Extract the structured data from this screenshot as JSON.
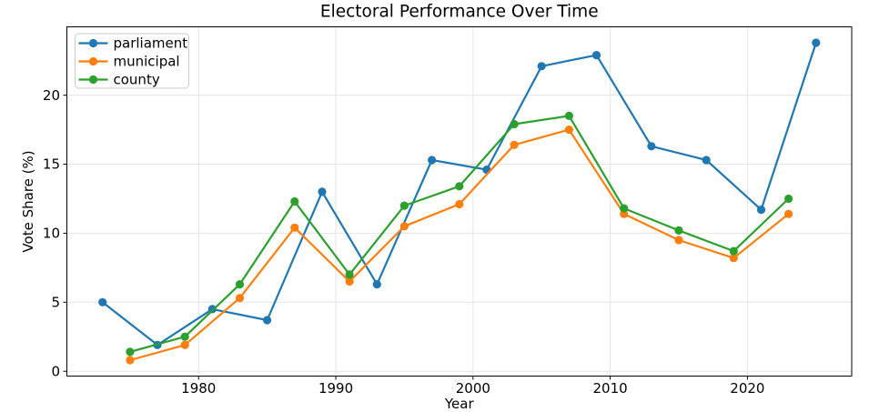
{
  "chart": {
    "title": "Electoral Performance Over Time",
    "xlabel": "Year",
    "ylabel": "Vote Share (%)"
  },
  "chart_data": {
    "type": "line",
    "title": "Electoral Performance Over Time",
    "xlabel": "Year",
    "ylabel": "Vote Share (%)",
    "x_ticks": [
      1980,
      1990,
      2000,
      2010,
      2020
    ],
    "y_ticks": [
      0,
      5,
      10,
      15,
      20
    ],
    "xlim": [
      1970.4,
      2027.6
    ],
    "ylim": [
      -0.35,
      24.95
    ],
    "grid": true,
    "legend_position": "upper-left",
    "legend_entries": [
      "parliament",
      "municipal",
      "county"
    ],
    "series": [
      {
        "name": "parliament",
        "color": "#1f77b4",
        "marker": "circle",
        "x": [
          1973,
          1977,
          1981,
          1985,
          1989,
          1993,
          1997,
          2001,
          2005,
          2009,
          2013,
          2017,
          2021,
          2025
        ],
        "values": [
          5.0,
          1.9,
          4.5,
          3.7,
          13.0,
          6.3,
          15.3,
          14.6,
          22.1,
          22.9,
          16.3,
          15.3,
          11.7,
          23.8
        ]
      },
      {
        "name": "municipal",
        "color": "#ff7f0e",
        "marker": "circle",
        "x": [
          1975,
          1979,
          1983,
          1987,
          1991,
          1995,
          1999,
          2003,
          2007,
          2011,
          2015,
          2019,
          2023
        ],
        "values": [
          0.8,
          1.9,
          5.3,
          10.4,
          6.5,
          10.5,
          12.1,
          16.4,
          17.5,
          11.4,
          9.5,
          8.2,
          11.4
        ]
      },
      {
        "name": "county",
        "color": "#2ca02c",
        "marker": "circle",
        "x": [
          1975,
          1979,
          1983,
          1987,
          1991,
          1995,
          1999,
          2003,
          2007,
          2011,
          2015,
          2019,
          2023
        ],
        "values": [
          1.4,
          2.5,
          6.3,
          12.3,
          7.0,
          12.0,
          13.4,
          17.9,
          18.5,
          11.8,
          10.2,
          8.7,
          12.5
        ]
      }
    ]
  }
}
